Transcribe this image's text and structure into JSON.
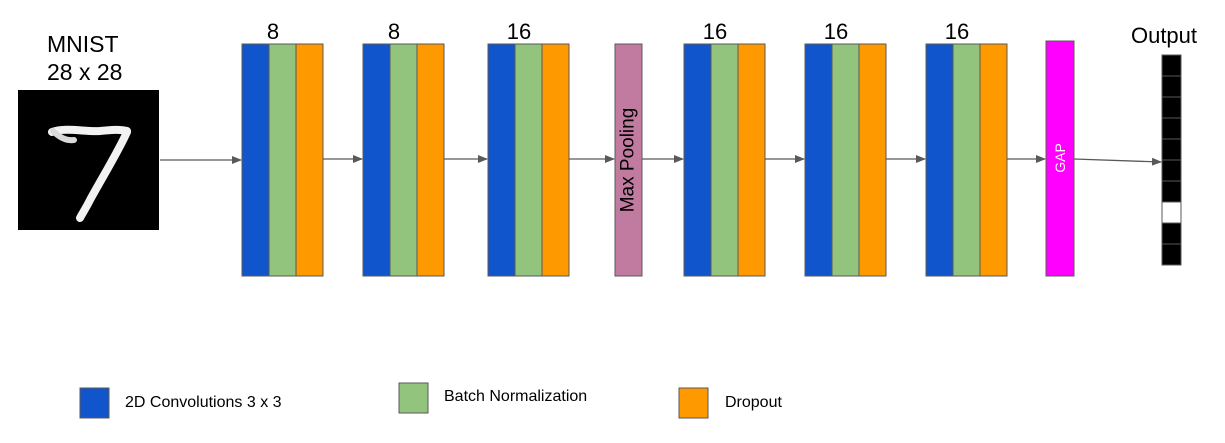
{
  "colors": {
    "conv": "#1155cc",
    "batchnorm": "#93c47d",
    "dropout": "#ff9900",
    "pool": "#c27ba0",
    "gap": "#ff00ff",
    "arrow": "#595959",
    "outline": "#595959"
  },
  "input": {
    "line1": "MNIST",
    "line2": "28 x 28",
    "glyph": "handwritten-digit-7"
  },
  "blocks": [
    {
      "type": "conv-block",
      "count": "8"
    },
    {
      "type": "conv-block",
      "count": "8"
    },
    {
      "type": "conv-block",
      "count": "16"
    },
    {
      "type": "pool",
      "label": "Max Pooling"
    },
    {
      "type": "conv-block",
      "count": "16"
    },
    {
      "type": "conv-block",
      "count": "16"
    },
    {
      "type": "conv-block",
      "count": "16"
    },
    {
      "type": "gap",
      "label": "GAP"
    }
  ],
  "output": {
    "label": "Output",
    "cells": 10,
    "highlighted": 8
  },
  "legend": [
    {
      "key": "conv",
      "label": "2D Convolutions 3 x 3"
    },
    {
      "key": "batchnorm",
      "label": "Batch Normalization"
    },
    {
      "key": "dropout",
      "label": "Dropout"
    }
  ]
}
